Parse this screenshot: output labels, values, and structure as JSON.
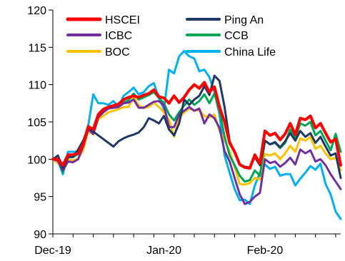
{
  "chart_data": {
    "type": "line",
    "title": "",
    "xlabel": "",
    "ylabel": "",
    "ylim": [
      90,
      120
    ],
    "yticks": [
      "90",
      "95",
      "100",
      "105",
      "110",
      "115",
      "120"
    ],
    "xticks": [
      "Dec-19",
      "Jan-20",
      "Feb-20"
    ],
    "xtick_positions": [
      0,
      22,
      42
    ],
    "x": [
      0,
      1,
      2,
      3,
      4,
      5,
      6,
      7,
      8,
      9,
      10,
      11,
      12,
      13,
      14,
      15,
      16,
      17,
      18,
      19,
      20,
      21,
      22,
      23,
      24,
      25,
      26,
      27,
      28,
      29,
      30,
      31,
      32,
      33,
      34,
      35,
      36,
      37,
      38,
      39,
      40,
      41,
      42,
      43,
      44,
      45,
      46,
      47,
      48,
      49,
      50,
      51,
      52,
      53,
      54,
      55,
      56,
      57
    ],
    "legend_position": "top",
    "grid": false,
    "series": [
      {
        "name": "HSCEI",
        "color": "#ff0000",
        "width": 4,
        "values": [
          100,
          100,
          99.2,
          100.6,
          100.6,
          100.8,
          102,
          104.4,
          104,
          106,
          106.7,
          107,
          107.2,
          107.4,
          108,
          108.3,
          108.5,
          108.3,
          108.6,
          108.8,
          109.3,
          108.4,
          108.2,
          107.5,
          108.5,
          107.6,
          108.3,
          109.3,
          110,
          109.5,
          110.3,
          109,
          109.7,
          107,
          105,
          102.2,
          101,
          99.3,
          98.9,
          98.8,
          100.6,
          99.4,
          103.8,
          103.2,
          103.5,
          102.6,
          103.4,
          104.8,
          103.3,
          105.5,
          105.3,
          105.8,
          104.2,
          104.8,
          103.5,
          102.3,
          102.7,
          99.2
        ]
      },
      {
        "name": "Ping An",
        "color": "#1f3864",
        "width": 3,
        "values": [
          100,
          100.5,
          98.8,
          100.3,
          100.3,
          101.3,
          102.5,
          104.2,
          103.7,
          103.2,
          102.7,
          102.2,
          101.7,
          102.4,
          102.8,
          103.1,
          103.3,
          103.6,
          104.3,
          105.5,
          105.2,
          104.8,
          105.8,
          104,
          103.2,
          104.8,
          108,
          107.3,
          108,
          108.5,
          109.8,
          108.6,
          111.2,
          110.5,
          107,
          102.4,
          101,
          99.3,
          99,
          98.9,
          100.3,
          99.2,
          102.5,
          102,
          102.3,
          101.6,
          102.4,
          103.5,
          102.5,
          103.8,
          103,
          103.5,
          102.2,
          103,
          101.7,
          100.5,
          100.8,
          97.5
        ]
      },
      {
        "name": "ICBC",
        "color": "#7030a0",
        "width": 3,
        "values": [
          100,
          99.8,
          98.5,
          99.7,
          99.6,
          100,
          101.7,
          104,
          103.4,
          105.6,
          106.3,
          106.8,
          106.9,
          107,
          107.5,
          107.6,
          108,
          106.9,
          106.9,
          107.3,
          107.7,
          107.8,
          107.2,
          104.3,
          104.3,
          106,
          106.5,
          107,
          106.5,
          106.8,
          104.8,
          106,
          105.5,
          104.2,
          101.1,
          99.7,
          97.5,
          95.3,
          94,
          94.3,
          95,
          95.5,
          100,
          99.5,
          99.7,
          99,
          99.5,
          100.2,
          99.3,
          101.3,
          100.8,
          101.2,
          99.7,
          100,
          99.2,
          98,
          97,
          96
        ]
      },
      {
        "name": "CCB",
        "color": "#00a651",
        "width": 3,
        "values": [
          100,
          99.8,
          98.3,
          100.3,
          100.3,
          100.7,
          101.8,
          104,
          103.6,
          105.7,
          106.5,
          106.8,
          107,
          107.2,
          107.6,
          107.9,
          108.8,
          108,
          108.3,
          108.6,
          109,
          108.2,
          107.5,
          106,
          105.2,
          106.3,
          107.2,
          108,
          107.3,
          107.8,
          108.7,
          107.5,
          108.8,
          106.5,
          103,
          100.5,
          99.2,
          97.8,
          97,
          97.2,
          98.5,
          97.8,
          102.5,
          102,
          102.2,
          101.5,
          102.2,
          104,
          102.8,
          104.8,
          104.5,
          105,
          103.2,
          103.8,
          102.5,
          101.2,
          103.4,
          101
        ]
      },
      {
        "name": "BOC",
        "color": "#ffc000",
        "width": 3,
        "values": [
          100,
          99.5,
          98.7,
          100,
          99.8,
          100.1,
          101.2,
          103.8,
          103.3,
          105.4,
          105.8,
          106.3,
          106.5,
          106.7,
          107,
          107,
          108.4,
          107.2,
          106.9,
          107,
          107.6,
          107,
          106.3,
          105.3,
          103,
          105.5,
          106.3,
          106.8,
          106.5,
          106.6,
          105.8,
          105.6,
          106,
          103.8,
          102.6,
          101,
          99,
          96.7,
          96.6,
          96.8,
          97.5,
          97.3,
          100.7,
          100.5,
          100.8,
          100,
          100.8,
          101.8,
          101,
          102.8,
          102.5,
          103,
          101.4,
          101.8,
          100.8,
          100,
          100.2,
          98.5
        ]
      },
      {
        "name": "China Life",
        "color": "#00b0f0",
        "width": 3,
        "values": [
          100,
          99.8,
          98,
          101,
          101,
          101,
          102,
          104.5,
          108.7,
          107.5,
          107.5,
          107.3,
          107.8,
          107,
          108.5,
          109,
          109.6,
          108.7,
          109,
          109.8,
          110.2,
          108.2,
          106.7,
          112,
          111.5,
          113.8,
          114.5,
          113.8,
          113.5,
          111.8,
          112,
          111,
          109,
          106,
          100.5,
          98.2,
          96,
          94.5,
          94.6,
          94,
          96.5,
          98.2,
          99.3,
          98.7,
          99,
          97.8,
          98,
          98,
          96.5,
          97.4,
          98.2,
          99.1,
          98.6,
          99.4,
          96.7,
          95.3,
          93,
          92
        ]
      }
    ]
  }
}
